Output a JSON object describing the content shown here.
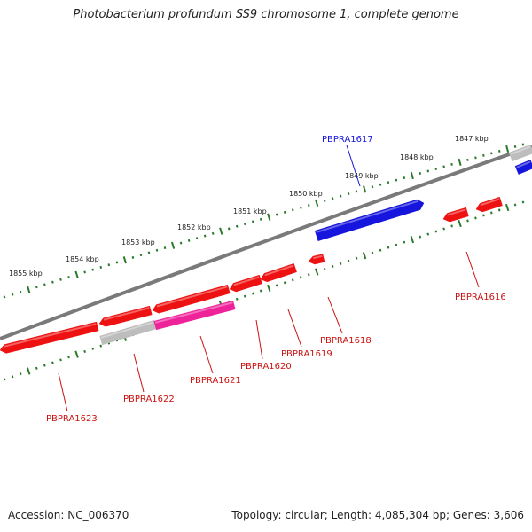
{
  "title": "Photobacterium profundum SS9 chromosome 1, complete genome",
  "footer": {
    "accession": "Accession: NC_006370",
    "summary": "Topology: circular; Length: 4,085,304 bp; Genes: 3,606"
  },
  "colors": {
    "backbone": "#7a7a7a",
    "ticks": "#2a7a2a",
    "forward_gene": "#1515dd",
    "reverse_gene": "#ee1111",
    "pseudo_gene": "#bdbdbd",
    "highlight_gene": "#ee2299",
    "forward_label": "#1515dd",
    "reverse_label": "#cc1111"
  },
  "kbp_labels": [
    "1847 kbp",
    "1848 kbp",
    "1849 kbp",
    "1850 kbp",
    "1851 kbp",
    "1852 kbp",
    "1853 kbp",
    "1854 kbp",
    "1855 kbp"
  ],
  "genes": [
    {
      "id": "PBPRA1616",
      "strand": "reverse"
    },
    {
      "id": "PBPRA1617",
      "strand": "forward"
    },
    {
      "id": "PBPRA1618",
      "strand": "reverse"
    },
    {
      "id": "PBPRA1619",
      "strand": "reverse"
    },
    {
      "id": "PBPRA1620",
      "strand": "reverse"
    },
    {
      "id": "PBPRA1621",
      "strand": "reverse"
    },
    {
      "id": "PBPRA1622",
      "strand": "reverse"
    },
    {
      "id": "PBPRA1623",
      "strand": "reverse"
    }
  ]
}
